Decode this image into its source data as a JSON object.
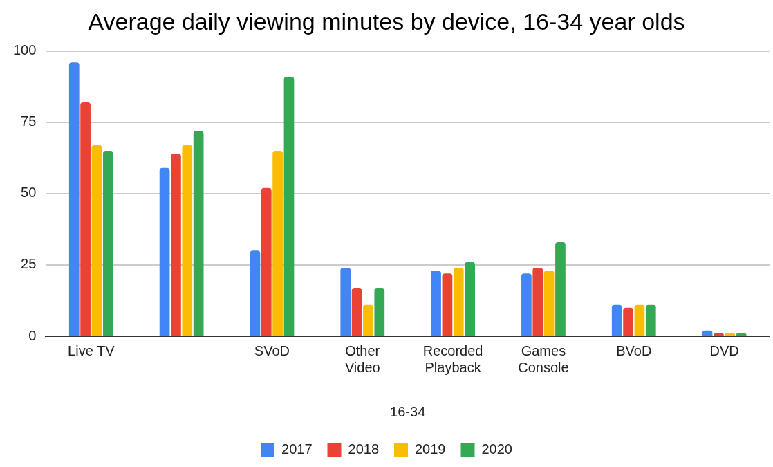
{
  "chart_data": {
    "type": "bar",
    "title": "Average daily viewing minutes by device, 16-34 year olds",
    "xlabel": "16-34",
    "categories": [
      "Live TV",
      null,
      "SVoD",
      "Other Video",
      "Recorded Playback",
      "Games Console",
      "BVoD",
      "DVD"
    ],
    "series": [
      {
        "name": "2017",
        "color": "#4285f4",
        "values": [
          96,
          59,
          30,
          24,
          23,
          22,
          11,
          2
        ]
      },
      {
        "name": "2018",
        "color": "#ea4335",
        "values": [
          82,
          64,
          52,
          17,
          22,
          24,
          10,
          1
        ]
      },
      {
        "name": "2019",
        "color": "#fbbc04",
        "values": [
          67,
          67,
          65,
          11,
          24,
          23,
          11,
          1
        ]
      },
      {
        "name": "2020",
        "color": "#34a853",
        "values": [
          65,
          72,
          91,
          17,
          26,
          33,
          11,
          1
        ]
      }
    ],
    "ylim": [
      0,
      100
    ],
    "yticks": [
      0,
      25,
      50,
      75,
      100
    ],
    "grid": "y",
    "legend": "bottom"
  }
}
